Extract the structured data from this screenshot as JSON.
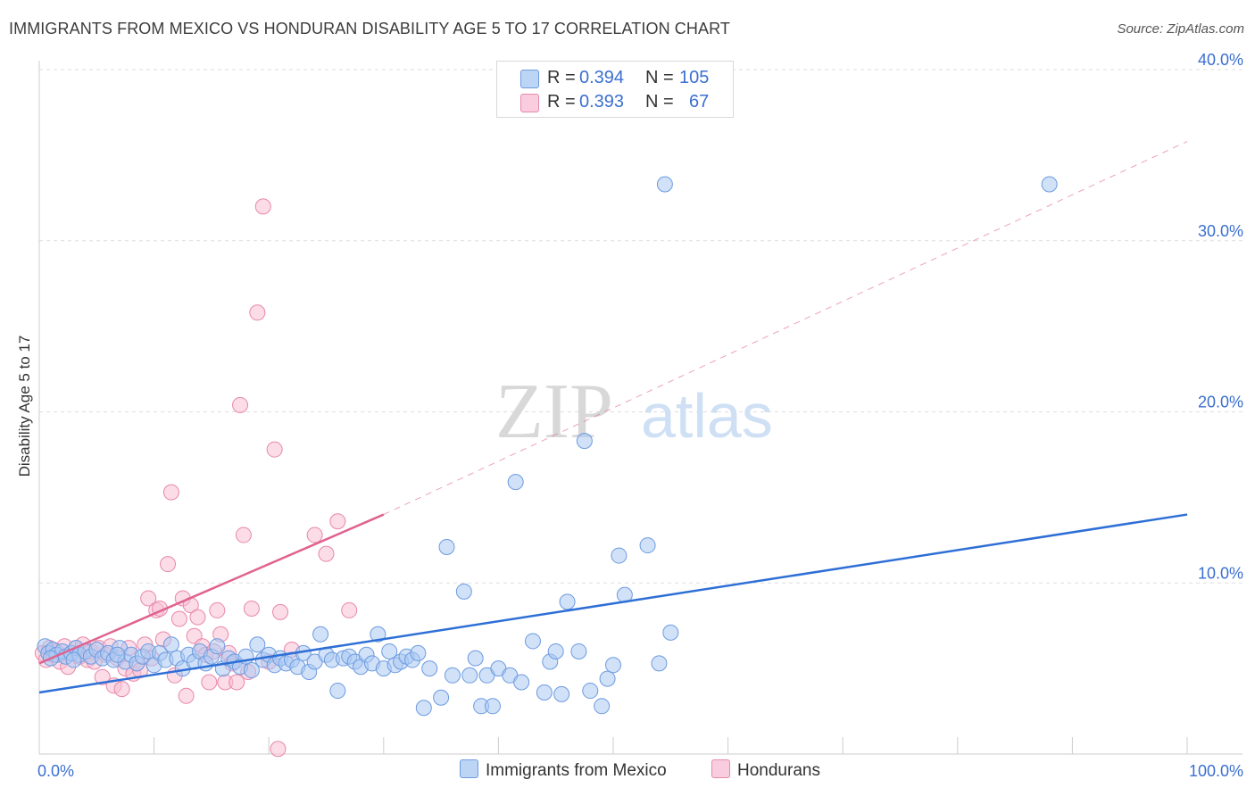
{
  "title": "IMMIGRANTS FROM MEXICO VS HONDURAN DISABILITY AGE 5 TO 17 CORRELATION CHART",
  "source": "Source: ZipAtlas.com",
  "watermark": {
    "zip": "ZIP",
    "atlas": "atlas"
  },
  "legend": {
    "r_label": "R =",
    "n_label": "N =",
    "series": [
      {
        "r": "0.394",
        "n": "105"
      },
      {
        "r": "0.393",
        "n": "67"
      }
    ]
  },
  "bottom_legend": [
    "Immigrants from Mexico",
    "Hondurans"
  ],
  "colors": {
    "blue_fill": "#a9c8f2",
    "blue_stroke": "#6d9be0",
    "blue_line": "#2e6fd6",
    "pink_fill": "#f7bfd3",
    "pink_stroke": "#e888ab",
    "pink_line": "#e0628f",
    "axis_text": "#3b6fd1",
    "grid": "#dddddd"
  },
  "chart_data": {
    "type": "scatter",
    "title": "IMMIGRANTS FROM MEXICO VS HONDURAN DISABILITY AGE 5 TO 17 CORRELATION CHART",
    "ylabel": "Disability Age 5 to 17",
    "xlabel": "",
    "xlim": [
      0,
      100
    ],
    "ylim": [
      0,
      40
    ],
    "x_tick_labels": [
      "0.0%",
      "100.0%"
    ],
    "y_ticks": [
      10,
      20,
      30,
      40
    ],
    "y_tick_labels": [
      "10.0%",
      "20.0%",
      "30.0%",
      "40.0%"
    ],
    "grid": true,
    "legend_placement": "top-center",
    "series": [
      {
        "name": "Immigrants from Mexico",
        "r": 0.394,
        "n": 105,
        "trend": {
          "x": [
            0,
            100
          ],
          "y": [
            3.6,
            14.0
          ],
          "style": "solid"
        },
        "points": [
          [
            0.5,
            6.3
          ],
          [
            0.8,
            5.9
          ],
          [
            1.2,
            6.1
          ],
          [
            1.5,
            5.8
          ],
          [
            2.0,
            6.0
          ],
          [
            2.3,
            5.7
          ],
          [
            2.8,
            5.9
          ],
          [
            3.2,
            6.2
          ],
          [
            3.5,
            5.8
          ],
          [
            4.0,
            6.0
          ],
          [
            4.5,
            5.7
          ],
          [
            5.0,
            6.1
          ],
          [
            5.5,
            5.6
          ],
          [
            6.0,
            5.9
          ],
          [
            6.5,
            5.5
          ],
          [
            7.0,
            6.2
          ],
          [
            7.5,
            5.4
          ],
          [
            8.0,
            5.8
          ],
          [
            8.5,
            5.3
          ],
          [
            9.0,
            5.7
          ],
          [
            9.5,
            6.0
          ],
          [
            10.0,
            5.2
          ],
          [
            10.5,
            5.9
          ],
          [
            11.0,
            5.5
          ],
          [
            11.5,
            6.4
          ],
          [
            12.0,
            5.6
          ],
          [
            12.5,
            5.0
          ],
          [
            13.0,
            5.8
          ],
          [
            13.5,
            5.4
          ],
          [
            14.0,
            6.0
          ],
          [
            14.5,
            5.3
          ],
          [
            15.0,
            5.7
          ],
          [
            15.5,
            6.3
          ],
          [
            16.0,
            5.0
          ],
          [
            16.5,
            5.6
          ],
          [
            17.0,
            5.4
          ],
          [
            17.5,
            5.1
          ],
          [
            18.0,
            5.7
          ],
          [
            18.5,
            4.9
          ],
          [
            19.0,
            6.4
          ],
          [
            19.5,
            5.5
          ],
          [
            20.0,
            5.8
          ],
          [
            20.5,
            5.2
          ],
          [
            21.0,
            5.6
          ],
          [
            21.5,
            5.3
          ],
          [
            22.0,
            5.5
          ],
          [
            22.5,
            5.1
          ],
          [
            23.0,
            5.9
          ],
          [
            23.5,
            4.8
          ],
          [
            24.0,
            5.4
          ],
          [
            24.5,
            7.0
          ],
          [
            25.0,
            5.8
          ],
          [
            25.5,
            5.5
          ],
          [
            26.0,
            3.7
          ],
          [
            26.5,
            5.6
          ],
          [
            27.0,
            5.7
          ],
          [
            27.5,
            5.4
          ],
          [
            28.0,
            5.1
          ],
          [
            28.5,
            5.8
          ],
          [
            29.0,
            5.3
          ],
          [
            29.5,
            7.0
          ],
          [
            30.0,
            5.0
          ],
          [
            30.5,
            6.0
          ],
          [
            31.0,
            5.2
          ],
          [
            31.5,
            5.4
          ],
          [
            32.0,
            5.7
          ],
          [
            32.5,
            5.5
          ],
          [
            33.0,
            5.9
          ],
          [
            33.5,
            2.7
          ],
          [
            34.0,
            5.0
          ],
          [
            35.0,
            3.3
          ],
          [
            35.5,
            12.1
          ],
          [
            36.0,
            4.6
          ],
          [
            37.0,
            9.5
          ],
          [
            37.5,
            4.6
          ],
          [
            38.0,
            5.6
          ],
          [
            38.5,
            2.8
          ],
          [
            39.0,
            4.6
          ],
          [
            39.5,
            2.8
          ],
          [
            40.0,
            5.0
          ],
          [
            41.0,
            4.6
          ],
          [
            41.5,
            15.9
          ],
          [
            42.0,
            4.2
          ],
          [
            43.0,
            6.6
          ],
          [
            44.0,
            3.6
          ],
          [
            44.5,
            5.4
          ],
          [
            45.0,
            6.0
          ],
          [
            45.5,
            3.5
          ],
          [
            46.0,
            8.9
          ],
          [
            47.0,
            6.0
          ],
          [
            47.5,
            18.3
          ],
          [
            48.0,
            3.7
          ],
          [
            49.0,
            2.8
          ],
          [
            49.5,
            4.4
          ],
          [
            50.0,
            5.2
          ],
          [
            50.5,
            11.6
          ],
          [
            51.0,
            9.3
          ],
          [
            53.0,
            12.2
          ],
          [
            54.0,
            5.3
          ],
          [
            54.5,
            33.3
          ],
          [
            55.0,
            7.1
          ],
          [
            88.0,
            33.3
          ],
          [
            1.0,
            5.6
          ],
          [
            3.0,
            5.5
          ],
          [
            6.8,
            5.8
          ]
        ]
      },
      {
        "name": "Hondurans",
        "r": 0.393,
        "n": 67,
        "trend": {
          "x": [
            0,
            30
          ],
          "y": [
            5.3,
            14.0
          ],
          "dash_extension": {
            "x": [
              30,
              100
            ],
            "y": [
              14.0,
              35.8
            ]
          }
        },
        "points": [
          [
            0.3,
            5.9
          ],
          [
            0.6,
            5.5
          ],
          [
            0.9,
            6.2
          ],
          [
            1.2,
            5.8
          ],
          [
            1.5,
            6.0
          ],
          [
            1.8,
            5.4
          ],
          [
            2.2,
            6.3
          ],
          [
            2.5,
            5.1
          ],
          [
            2.8,
            5.9
          ],
          [
            3.2,
            6.2
          ],
          [
            3.5,
            5.7
          ],
          [
            3.8,
            6.4
          ],
          [
            4.2,
            5.5
          ],
          [
            4.5,
            6.0
          ],
          [
            4.8,
            5.4
          ],
          [
            5.2,
            6.2
          ],
          [
            5.5,
            4.5
          ],
          [
            5.8,
            5.8
          ],
          [
            6.2,
            6.3
          ],
          [
            6.5,
            4.0
          ],
          [
            6.8,
            5.6
          ],
          [
            7.2,
            3.8
          ],
          [
            7.5,
            5.0
          ],
          [
            7.8,
            6.2
          ],
          [
            8.2,
            4.7
          ],
          [
            8.5,
            5.3
          ],
          [
            8.8,
            4.9
          ],
          [
            9.2,
            6.4
          ],
          [
            9.5,
            9.1
          ],
          [
            9.8,
            5.6
          ],
          [
            10.2,
            8.4
          ],
          [
            10.5,
            8.5
          ],
          [
            10.8,
            6.7
          ],
          [
            11.2,
            11.1
          ],
          [
            11.5,
            15.3
          ],
          [
            11.8,
            4.6
          ],
          [
            12.2,
            7.9
          ],
          [
            12.5,
            9.1
          ],
          [
            12.8,
            3.4
          ],
          [
            13.2,
            8.7
          ],
          [
            13.5,
            6.9
          ],
          [
            13.8,
            8.0
          ],
          [
            14.2,
            6.3
          ],
          [
            14.5,
            5.8
          ],
          [
            14.8,
            4.2
          ],
          [
            15.2,
            6.0
          ],
          [
            15.5,
            8.4
          ],
          [
            15.8,
            7.0
          ],
          [
            16.2,
            4.2
          ],
          [
            16.5,
            5.9
          ],
          [
            16.8,
            5.3
          ],
          [
            17.2,
            4.2
          ],
          [
            17.5,
            20.4
          ],
          [
            17.8,
            12.8
          ],
          [
            18.2,
            4.8
          ],
          [
            18.5,
            8.5
          ],
          [
            19.0,
            25.8
          ],
          [
            19.5,
            32.0
          ],
          [
            20.0,
            5.4
          ],
          [
            20.5,
            17.8
          ],
          [
            21.0,
            8.3
          ],
          [
            24.0,
            12.8
          ],
          [
            25.0,
            11.7
          ],
          [
            27.0,
            8.4
          ],
          [
            26.0,
            13.6
          ],
          [
            20.8,
            0.3
          ],
          [
            22.0,
            6.1
          ]
        ]
      }
    ]
  }
}
